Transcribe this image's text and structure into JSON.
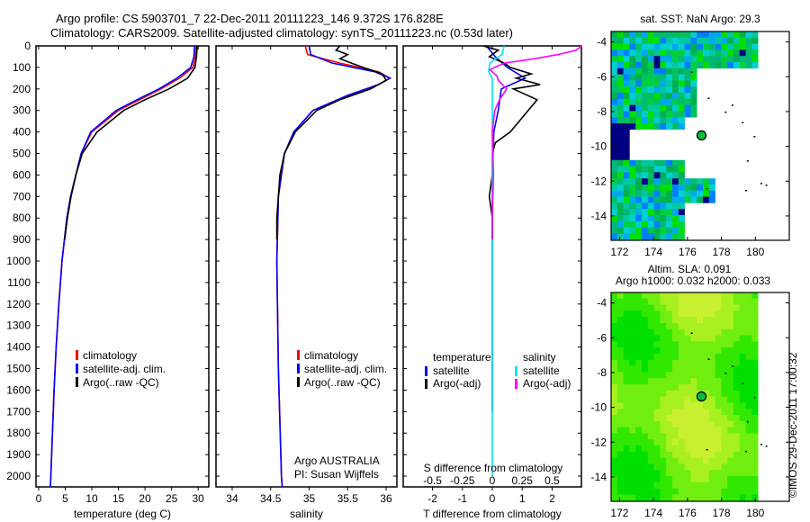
{
  "title_line1": "Argo profile: CS 5903701_7 22-Dec-2011 20111223_146 9.372S 176.828E",
  "title_line2": "Climatology: CARS2009. Satellite-adjusted climatology: synTS_20111223.nc (0.53d later)",
  "footer_credit": "©IMOS 29-Dec-2011 17:00:32",
  "colors": {
    "climatology": "#ff0000",
    "satellite": "#0000ff",
    "argo": "#000000",
    "sal_satellite": "#00e5ee",
    "sal_argo": "#ff00ff"
  },
  "chart_data": [
    {
      "type": "line",
      "name": "temperature",
      "xlabel": "temperature (deg C)",
      "ylabel": "",
      "xlim": [
        -0.5,
        32
      ],
      "ylim": [
        2050,
        0
      ],
      "xticks": [
        0,
        5,
        10,
        15,
        20,
        25,
        30
      ],
      "yticks": [
        0,
        100,
        200,
        300,
        400,
        500,
        600,
        700,
        800,
        900,
        1000,
        1100,
        1200,
        1300,
        1400,
        1500,
        1600,
        1700,
        1800,
        1900,
        2000
      ],
      "legend": [
        "climatology",
        "satellite-adj. clim.",
        "Argo(..raw -QC)"
      ],
      "legend_position": "lower-center",
      "series": [
        {
          "name": "climatology",
          "depth": [
            0,
            50,
            100,
            150,
            200,
            250,
            300,
            400,
            500,
            600,
            700,
            800,
            1000,
            1200,
            1400,
            1600,
            1800,
            2000,
            2050
          ],
          "values": [
            29.6,
            29.5,
            29.0,
            26.5,
            23.0,
            19.0,
            15.0,
            10.0,
            8.0,
            7.0,
            6.0,
            5.3,
            4.4,
            3.8,
            3.3,
            2.9,
            2.6,
            2.3,
            2.2
          ]
        },
        {
          "name": "satellite-adj. clim.",
          "depth": [
            0,
            50,
            100,
            150,
            200,
            250,
            300,
            400,
            500,
            600,
            700,
            800,
            1000,
            1200,
            1400,
            1600,
            1800,
            2000,
            2050
          ],
          "values": [
            29.3,
            29.2,
            28.6,
            26.0,
            22.6,
            18.5,
            14.6,
            9.8,
            8.0,
            7.0,
            6.0,
            5.3,
            4.4,
            3.8,
            3.3,
            2.9,
            2.6,
            2.3,
            2.2
          ]
        },
        {
          "name": "Argo(..raw -QC)",
          "depth": [
            0,
            50,
            100,
            150,
            200,
            250,
            300,
            400,
            500,
            600,
            700,
            800,
            900
          ],
          "values": [
            29.8,
            29.7,
            29.4,
            28.0,
            24.5,
            20.0,
            16.0,
            11.0,
            8.2,
            7.0,
            6.1,
            5.4,
            4.9
          ]
        }
      ]
    },
    {
      "type": "line",
      "name": "salinity",
      "xlabel": "salinity",
      "xlim": [
        33.79,
        36.14
      ],
      "ylim": [
        2050,
        0
      ],
      "xticks": [
        34,
        34.5,
        35,
        35.5,
        36
      ],
      "legend": [
        "climatology",
        "satellite-adj. clim.",
        "Argo(..raw -QC)"
      ],
      "legend_position": "lower-center",
      "annotation": [
        "Argo AUSTRALIA",
        "PI: Susan Wijffels"
      ],
      "series": [
        {
          "name": "climatology",
          "depth": [
            0,
            40,
            80,
            120,
            150,
            180,
            230,
            300,
            400,
            500,
            700,
            1000,
            1500,
            2000,
            2050
          ],
          "values": [
            34.95,
            34.98,
            35.4,
            35.9,
            36.05,
            35.9,
            35.5,
            35.05,
            34.8,
            34.68,
            34.6,
            34.58,
            34.6,
            34.64,
            34.65
          ]
        },
        {
          "name": "satellite-adj. clim.",
          "depth": [
            0,
            40,
            80,
            120,
            150,
            180,
            230,
            300,
            400,
            500,
            700,
            1000,
            1500,
            2000,
            2050
          ],
          "values": [
            35.0,
            35.02,
            35.3,
            35.85,
            36.05,
            35.9,
            35.5,
            35.05,
            34.8,
            34.68,
            34.6,
            34.58,
            34.6,
            34.64,
            34.65
          ]
        },
        {
          "name": "Argo(..raw -QC)",
          "depth": [
            0,
            20,
            40,
            60,
            80,
            100,
            130,
            160,
            200,
            250,
            300,
            400,
            500,
            600,
            700,
            800,
            900
          ],
          "values": [
            35.4,
            35.35,
            35.5,
            35.4,
            35.55,
            35.7,
            35.95,
            36.0,
            35.8,
            35.4,
            35.1,
            34.82,
            34.68,
            34.62,
            34.6,
            34.58,
            34.58
          ]
        }
      ]
    },
    {
      "type": "line",
      "name": "difference",
      "xlabel": "T difference from climatology",
      "x2label": "S difference from climatology",
      "xlim": [
        -2.98,
        2.98
      ],
      "x2lim": [
        -0.745,
        0.745
      ],
      "xticks": [
        -2,
        -1,
        0,
        1,
        2
      ],
      "x2ticks": [
        -0.5,
        -0.25,
        0,
        0.25,
        0.5
      ],
      "ylim": [
        2050,
        0
      ],
      "legend_groups": [
        {
          "title": "temperature",
          "items": [
            "satellite",
            "Argo(-adj)"
          ]
        },
        {
          "title": "salinity",
          "items": [
            "satellite",
            "Argo(-adj)"
          ]
        }
      ],
      "series": [
        {
          "name": "temperature satellite",
          "axis": "T",
          "depth": [
            0,
            50,
            100,
            150,
            200,
            300,
            400,
            600,
            1000,
            1500,
            1700
          ],
          "values": [
            -0.2,
            0.1,
            0.5,
            1.1,
            0.3,
            0.2,
            0.05,
            0.0,
            0.0,
            0.0,
            0.0
          ]
        },
        {
          "name": "temperature Argo(-adj)",
          "axis": "T",
          "depth": [
            0,
            20,
            50,
            80,
            100,
            130,
            150,
            180,
            200,
            250,
            300,
            350,
            400,
            450,
            500,
            600,
            700,
            800,
            900
          ],
          "values": [
            -0.3,
            0.2,
            -0.1,
            0.4,
            0.6,
            1.3,
            0.8,
            1.6,
            0.7,
            1.5,
            1.2,
            0.9,
            0.6,
            0.1,
            0.0,
            0.0,
            -0.1,
            0.0,
            0.0
          ]
        },
        {
          "name": "salinity satellite",
          "axis": "S",
          "depth": [
            0,
            40,
            80,
            120,
            150,
            200,
            300,
            500,
            1000,
            1500,
            2000
          ],
          "values": [
            0.1,
            0.08,
            -0.02,
            -0.03,
            0.0,
            0.0,
            0.0,
            0.0,
            0.0,
            0.0,
            0.0
          ]
        },
        {
          "name": "salinity Argo(-adj)",
          "axis": "S",
          "depth": [
            0,
            20,
            40,
            60,
            80,
            110,
            140,
            160,
            200,
            250,
            300,
            400,
            600,
            800,
            900
          ],
          "values": [
            0.75,
            0.7,
            0.55,
            0.35,
            0.1,
            -0.02,
            0.04,
            0.05,
            0.12,
            0.06,
            0.02,
            0.0,
            0.01,
            0.0,
            0.0
          ]
        }
      ]
    },
    {
      "type": "heatmap",
      "name": "sst_map",
      "title": "sat. SST: NaN Argo: 29.3",
      "xlim": [
        171.5,
        182
      ],
      "ylim": [
        -15.4,
        -3.4
      ],
      "xticks": [
        172,
        174,
        176,
        178,
        180
      ],
      "yticks": [
        -4,
        -6,
        -8,
        -10,
        -12,
        -14
      ],
      "argo_position": [
        176.828,
        -9.372
      ]
    },
    {
      "type": "heatmap",
      "name": "sla_map",
      "title": "Altim. SLA: 0.091",
      "subtitle": "Argo h1000: 0.032 h2000: 0.033",
      "xlim": [
        171.5,
        182
      ],
      "ylim": [
        -15.4,
        -3.4
      ],
      "xticks": [
        172,
        174,
        176,
        178,
        180
      ],
      "yticks": [
        -4,
        -6,
        -8,
        -10,
        -12,
        -14
      ],
      "argo_position": [
        176.828,
        -9.372
      ]
    }
  ]
}
